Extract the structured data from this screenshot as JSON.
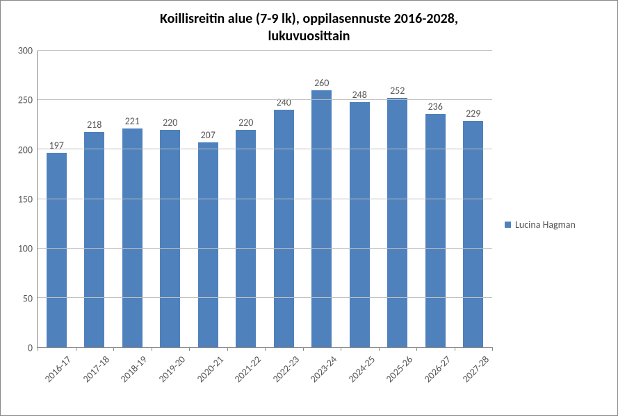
{
  "chart": {
    "type": "bar",
    "title_line1": "Koillisreitin alue (7-9 lk), oppilasennuste 2016-2028,",
    "title_line2": "lukuvuosittain",
    "title_fontsize": 20,
    "categories": [
      "2016-17",
      "2017-18",
      "2018-19",
      "2019-20",
      "2020-21",
      "2021-22",
      "2022-23",
      "2023-24",
      "2024-25",
      "2025-26",
      "2026-27",
      "2027-28"
    ],
    "values": [
      197,
      218,
      221,
      220,
      207,
      220,
      240,
      260,
      248,
      252,
      236,
      229
    ],
    "bar_color": "#4f81bd",
    "ylim": [
      0,
      300
    ],
    "ytick_step": 50,
    "yticks": [
      0,
      50,
      100,
      150,
      200,
      250,
      300
    ],
    "grid_color": "#bfbfbf",
    "axis_color": "#888888",
    "background_color": "#ffffff",
    "label_color": "#555555",
    "bar_width_ratio": 0.54,
    "data_label_fontsize": 14,
    "axis_label_fontsize": 14,
    "x_label_rotation_deg": -45,
    "legend": {
      "items": [
        {
          "label": "Lucina Hagman",
          "color": "#4f81bd"
        }
      ],
      "position": "right"
    }
  }
}
